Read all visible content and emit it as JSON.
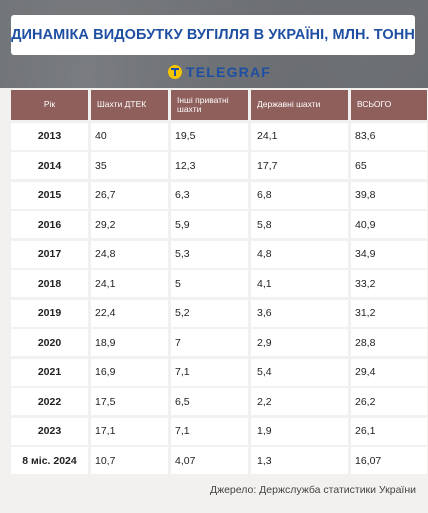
{
  "title": "ДИНАМІКА ВИДОБУТКУ ВУГІЛЛЯ В УКРАЇНІ, МЛН. ТОНН",
  "logo_text": "TELEGRAF",
  "source": "Джерело: Держслужба статистики України",
  "colors": {
    "title": "#1f4fa3",
    "header_bg": "#8f5f5c",
    "logo_accent": "#f5c400"
  },
  "chart_data": {
    "type": "table",
    "title": "ДИНАМІКА ВИДОБУТКУ ВУГІЛЛЯ В УКРАЇНІ, МЛН. ТОНН",
    "columns": [
      "Рік",
      "Шахти ДТЕК",
      "Інші приватні шахти",
      "Державні шахти",
      "ВСЬОГО"
    ],
    "rows": [
      [
        "2013",
        "40",
        "19,5",
        "24,1",
        "83,6"
      ],
      [
        "2014",
        "35",
        "12,3",
        "17,7",
        "65"
      ],
      [
        "2015",
        "26,7",
        "6,3",
        "6,8",
        "39,8"
      ],
      [
        "2016",
        "29,2",
        "5,9",
        "5,8",
        "40,9"
      ],
      [
        "2017",
        "24,8",
        "5,3",
        "4,8",
        "34,9"
      ],
      [
        "2018",
        "24,1",
        "5",
        "4,1",
        "33,2"
      ],
      [
        "2019",
        "22,4",
        "5,2",
        "3,6",
        "31,2"
      ],
      [
        "2020",
        "18,9",
        "7",
        "2,9",
        "28,8"
      ],
      [
        "2021",
        "16,9",
        "7,1",
        "5,4",
        "29,4"
      ],
      [
        "2022",
        "17,5",
        "6,5",
        "2,2",
        "26,2"
      ],
      [
        "2023",
        "17,1",
        "7,1",
        "1,9",
        "26,1"
      ],
      [
        "8 міс. 2024",
        "10,7",
        "4,07",
        "1,3",
        "16,07"
      ]
    ]
  }
}
